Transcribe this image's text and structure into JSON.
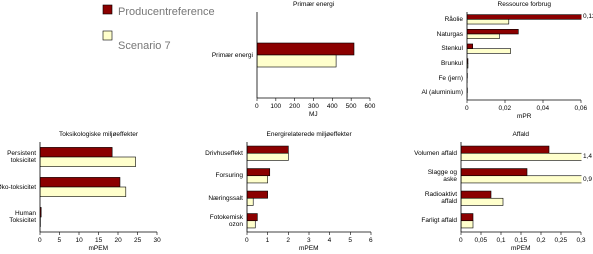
{
  "chart_data": [
    {
      "type": "bar",
      "title": "Primær energi",
      "xlabel": "MJ",
      "categories": [
        "Primær energi"
      ],
      "series": [
        {
          "name": "Producentreference",
          "color": "#8b0000",
          "values": [
            515
          ]
        },
        {
          "name": "Scenario 7",
          "color": "#ffffcc",
          "values": [
            420
          ]
        }
      ],
      "xlim": [
        0,
        600
      ],
      "xticks": [
        0,
        100,
        200,
        300,
        400,
        500,
        600
      ]
    },
    {
      "type": "bar",
      "title": "Ressource forbrug",
      "xlabel": "mPR",
      "categories": [
        "Råolie",
        "Naturgas",
        "Stenkul",
        "Brunkul",
        "Fe (jern)",
        "Al (aluminium)"
      ],
      "series": [
        {
          "color": "#8b0000",
          "values": [
            0.12,
            0.027,
            0.003,
            0.0005,
            0.0002,
            0.0002
          ],
          "value_labels": [
            "0,12",
            null,
            null,
            null,
            null,
            null
          ]
        },
        {
          "color": "#ffffcc",
          "values": [
            0.022,
            0.017,
            0.023,
            0.0005,
            0.0001,
            0.0001
          ]
        }
      ],
      "xlim": [
        0,
        0.06
      ],
      "xticks": [
        0,
        {
          "value": 0.02,
          "label": "0,02"
        },
        {
          "value": 0.04,
          "label": "0,04"
        },
        {
          "value": 0.06,
          "label": "0,06"
        }
      ]
    },
    {
      "type": "bar",
      "title": "Toksikologiske miljøeffekter",
      "xlabel": "mPEM",
      "categories": [
        "Persistent toksicitet",
        "Øko-toksicitet",
        "Human Toksicitet"
      ],
      "series": [
        {
          "color": "#8b0000",
          "values": [
            18.5,
            20.5,
            0.3
          ]
        },
        {
          "color": "#ffffcc",
          "values": [
            24.5,
            22,
            0.1
          ]
        }
      ],
      "xlim": [
        0,
        30
      ],
      "xticks": [
        0,
        5,
        10,
        15,
        20,
        25,
        30
      ]
    },
    {
      "type": "bar",
      "title": "Energirelaterede miljøeffekter",
      "xlabel": "mPEM",
      "categories": [
        "Drivhuseffekt",
        "Forsuring",
        "Næringssalt",
        "Fotokemisk ozon"
      ],
      "series": [
        {
          "color": "#8b0000",
          "values": [
            2.0,
            1.1,
            1.0,
            0.5
          ]
        },
        {
          "color": "#ffffcc",
          "values": [
            2.0,
            1.0,
            0.3,
            0.4
          ]
        }
      ],
      "xlim": [
        0,
        6
      ],
      "xticks": [
        0,
        1,
        2,
        3,
        4,
        5,
        6
      ]
    },
    {
      "type": "bar",
      "title": "Affald",
      "xlabel": "mPEM",
      "categories": [
        "Volumen affald",
        "Slagge og aske",
        "Radioaktivt affald",
        "Farligt affald"
      ],
      "series": [
        {
          "color": "#8b0000",
          "values": [
            0.22,
            0.165,
            0.075,
            0.03
          ]
        },
        {
          "color": "#ffffcc",
          "values": [
            1.4,
            0.9,
            0.105,
            0.03
          ],
          "value_labels": [
            "1,4",
            "0,9",
            null,
            null
          ]
        }
      ],
      "xlim": [
        0,
        0.3
      ],
      "xticks": [
        0,
        {
          "value": 0.05,
          "label": "0,05"
        },
        {
          "value": 0.1,
          "label": "0,1"
        },
        {
          "value": 0.15,
          "label": "0,15"
        },
        {
          "value": 0.2,
          "label": "0,2"
        },
        {
          "value": 0.25,
          "label": "0,25"
        },
        {
          "value": 0.3,
          "label": "0,3"
        }
      ]
    }
  ]
}
